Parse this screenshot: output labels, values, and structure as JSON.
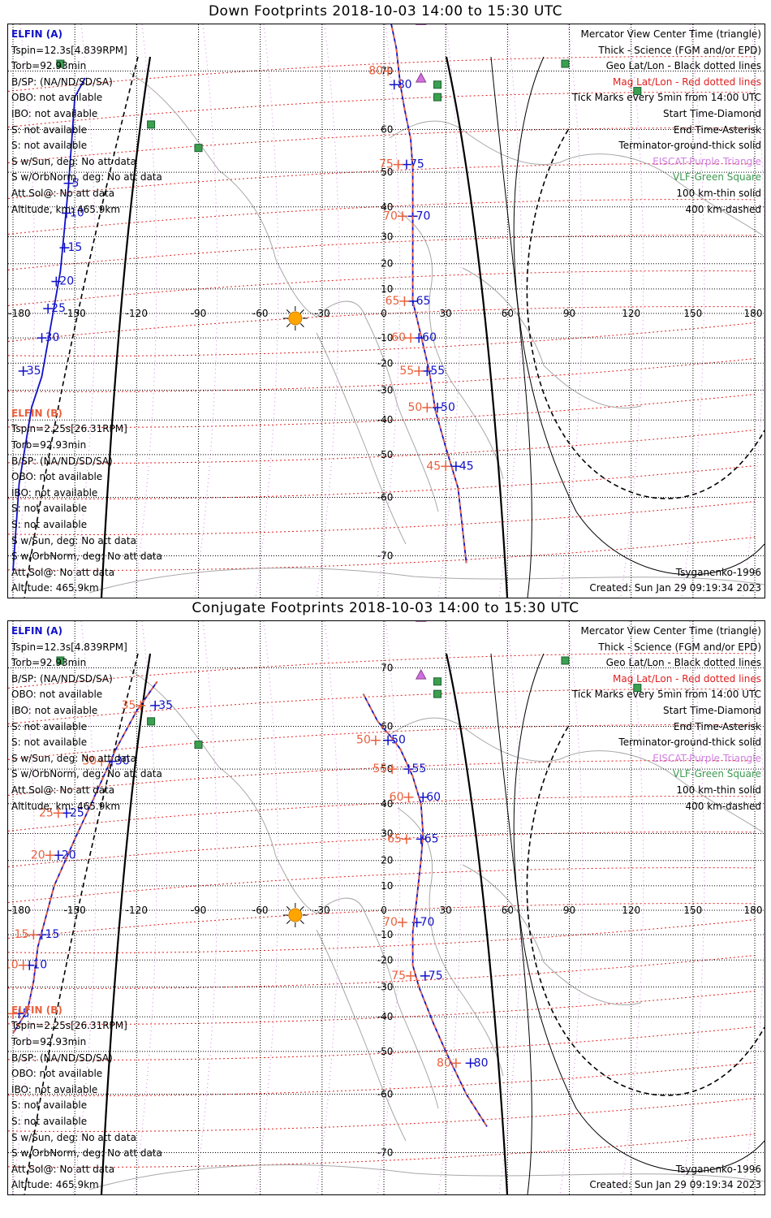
{
  "colors": {
    "elfin_a": "#1010c8",
    "elfin_b": "#e8603c",
    "mag_grid": "#e02020",
    "eiscat": "#d070e0",
    "vlf": "#3aa050",
    "coast": "#a8a8a8",
    "sun": "#ffa500"
  },
  "panels": [
    {
      "title": "Down Footprints 2018-10-03 14:00 to 15:30 UTC",
      "left_info": {
        "label": "ELFIN (A)",
        "lines": [
          "Tspin=12.3s[4.839RPM]",
          "Torb=92.93min",
          "B/SP: (NA/ND/SD/SA)",
          "OBO: not available",
          "IBO: not available",
          "S: not available",
          "S: not available",
          "S w/Sun, deg: No att data",
          "S w/OrbNorm, deg: No att data",
          "Att.Sol@: No att data",
          "Altitude, km: 465.9km"
        ]
      },
      "right_legend": [
        "Mercator View Center Time (triangle)",
        "Thick - Science (FGM and/or EPD)",
        "Geo Lat/Lon - Black dotted lines",
        "Mag Lat/Lon - Red dotted lines",
        "Tick Marks every 5min from 14:00 UTC",
        "Start Time-Diamond",
        "End Time-Asterisk",
        "Terminator-ground-thick solid",
        "EISCAT-Purple Triangle",
        "VLF-Green Square",
        "100 km-thin solid",
        "400 km-dashed"
      ],
      "bottom_info": {
        "label": "ELFIN (B)",
        "lines": [
          "Tspin=2.25s[26.31RPM]",
          "Torb=92.93min",
          "B/SP: (NA/ND/SD/SA)",
          "OBO: not available",
          "IBO: not available",
          "S: not available",
          "S: not available",
          "S w/Sun, deg: No att data",
          "S w/OrbNorm, deg: No att data",
          "Att.Sol@: No att data",
          "Altitude: 465.9km"
        ]
      },
      "footer_model": "Tsyganenko-1996",
      "footer_created": "Created: Sun Jan 29 09:19:34 2023",
      "lon_labels": [
        "-180",
        "-150",
        "-120",
        "-90",
        "-60",
        "-30",
        "0",
        "30",
        "60",
        "90",
        "120",
        "150",
        "180"
      ],
      "lat_labels": [
        "70",
        "60",
        "50",
        "40",
        "30",
        "20",
        "10",
        "-10",
        "-20",
        "-30",
        "-40",
        "-50",
        "-60",
        "-70"
      ],
      "tracks": [
        {
          "name": "ELFIN (A)",
          "color": "#1010c8",
          "points": [
            [
              -145,
              69
            ],
            [
              -150,
              66
            ],
            [
              -153,
              47
            ],
            [
              -155,
              33
            ],
            [
              -157,
              17
            ],
            [
              -161,
              -2
            ],
            [
              -166,
              -25
            ],
            [
              -171,
              -36
            ],
            [
              -177,
              -57
            ],
            [
              -180,
              -72
            ]
          ],
          "ticks": [
            [
              "5",
              -153,
              47
            ],
            [
              "10",
              -154,
              38
            ],
            [
              "15",
              -155,
              26
            ],
            [
              "20",
              -159,
              13
            ],
            [
              "25",
              -163,
              2
            ],
            [
              "30",
              -166,
              -10
            ],
            [
              "35",
              -175,
              -23
            ]
          ]
        },
        {
          "name": "ELFIN (A) Europe",
          "color": "#1010c8",
          "points": [
            [
              1,
              78
            ],
            [
              6,
              73
            ],
            [
              8,
              68
            ],
            [
              10,
              64
            ],
            [
              13,
              58
            ],
            [
              14,
              51
            ],
            [
              14,
              41
            ],
            [
              14,
              23
            ],
            [
              14,
              5
            ],
            [
              18,
              -9
            ],
            [
              22,
              -23
            ],
            [
              25,
              -37
            ],
            [
              30,
              -48
            ],
            [
              36,
              -58
            ],
            [
              40,
              -71
            ]
          ],
          "ticks": [
            [
              "80",
              5,
              68
            ],
            [
              "75",
              11,
              52
            ],
            [
              "70",
              14,
              37
            ],
            [
              "65",
              14,
              5
            ],
            [
              "60",
              17,
              -10
            ],
            [
              "55",
              21,
              -23
            ],
            [
              "50",
              26,
              -36
            ],
            [
              "45",
              35,
              -53
            ]
          ]
        },
        {
          "name": "ELFIN (B) Europe",
          "color": "#e8603c",
          "points": [
            [
              1,
              78
            ],
            [
              6,
              73
            ],
            [
              8,
              68
            ],
            [
              10,
              64
            ],
            [
              13,
              58
            ],
            [
              14,
              51
            ],
            [
              14,
              41
            ],
            [
              14,
              23
            ],
            [
              14,
              5
            ],
            [
              18,
              -9
            ],
            [
              22,
              -23
            ],
            [
              25,
              -37
            ],
            [
              30,
              -48
            ],
            [
              36,
              -58
            ],
            [
              40,
              -71
            ]
          ],
          "ticks": [
            [
              "80",
              2,
              70
            ],
            [
              "75",
              7,
              52
            ],
            [
              "70",
              9,
              37
            ],
            [
              "65",
              10,
              5
            ],
            [
              "60",
              13,
              -10
            ],
            [
              "55",
              17,
              -23
            ],
            [
              "50",
              21,
              -36
            ],
            [
              "45",
              30,
              -53
            ]
          ]
        }
      ],
      "sun": [
        -43,
        -2
      ],
      "eiscat": [
        [
          18,
          76
        ],
        [
          18,
          69
        ]
      ],
      "vlf": [
        [
          -157,
          71
        ],
        [
          -113,
          61
        ],
        [
          -90,
          56
        ],
        [
          26,
          68
        ],
        [
          26,
          66
        ],
        [
          88,
          71
        ],
        [
          123,
          67
        ]
      ]
    },
    {
      "title": "Conjugate Footprints 2018-10-03 14:00 to 15:30 UTC",
      "left_info": {
        "label": "ELFIN (A)",
        "lines": [
          "Tspin=12.3s[4.839RPM]",
          "Torb=92.93min",
          "B/SP: (NA/ND/SD/SA)",
          "OBO: not available",
          "IBO: not available",
          "S: not available",
          "S: not available",
          "S w/Sun, deg: No att data",
          "S w/OrbNorm, deg: No att data",
          "Att.Sol@: No att data",
          "Altitude, km: 465.9km"
        ]
      },
      "right_legend": [
        "Mercator View Center Time (triangle)",
        "Thick - Science (FGM and/or EPD)",
        "Geo Lat/Lon - Black dotted lines",
        "Mag Lat/Lon - Red dotted lines",
        "Tick Marks every 5min from 14:00 UTC",
        "Start Time-Diamond",
        "End Time-Asterisk",
        "Terminator-ground-thick solid",
        "EISCAT-Purple Triangle",
        "VLF-Green Square",
        "100 km-thin solid",
        "400 km-dashed"
      ],
      "bottom_info": {
        "label": "ELFIN (B)",
        "lines": [
          "Tspin=2.25s[26.31RPM]",
          "Torb=92.93min",
          "B/SP: (NA/ND/SD/SA)",
          "OBO: not available",
          "IBO: not available",
          "S: not available",
          "S: not available",
          "S w/Sun, deg: No att data",
          "S w/OrbNorm, deg: No att data",
          "Att.Sol@: No att data",
          "Altitude: 465.9km"
        ]
      },
      "footer_model": "Tsyganenko-1996",
      "footer_created": "Created: Sun Jan 29 09:19:34 2023",
      "lon_labels": [
        "-180",
        "-150",
        "-120",
        "-90",
        "-60",
        "-30",
        "0",
        "30",
        "60",
        "90",
        "120",
        "150",
        "180"
      ],
      "lat_labels": [
        "70",
        "60",
        "50",
        "40",
        "30",
        "20",
        "10",
        "-10",
        "-20",
        "-30",
        "-40",
        "-50",
        "-60",
        "-70"
      ],
      "tracks": [
        {
          "name": "ELFIN (A)",
          "color": "#1010c8",
          "points": [
            [
              -180,
              -45
            ],
            [
              -173,
              -38
            ],
            [
              -170,
              -28
            ],
            [
              -168,
              -15
            ],
            [
              -160,
              10
            ],
            [
              -150,
              28
            ],
            [
              -142,
              40
            ],
            [
              -130,
              55
            ],
            [
              -120,
              63
            ],
            [
              -110,
              68
            ]
          ],
          "ticks": [
            [
              "35",
              -111,
              64
            ],
            [
              "30",
              -132,
              52
            ],
            [
              "25",
              -154,
              37
            ],
            [
              "20",
              -158,
              22
            ],
            [
              "15",
              -166,
              -10
            ],
            [
              "10",
              -172,
              -22
            ],
            [
              "5",
              -177,
              -39
            ]
          ]
        },
        {
          "name": "ELFIN (B)",
          "color": "#e8603c",
          "points": [
            [
              -180,
              -45
            ],
            [
              -173,
              -38
            ],
            [
              -170,
              -28
            ],
            [
              -168,
              -15
            ],
            [
              -160,
              10
            ],
            [
              -150,
              28
            ],
            [
              -142,
              40
            ],
            [
              -130,
              55
            ],
            [
              -120,
              63
            ],
            [
              -110,
              68
            ]
          ],
          "ticks": [
            [
              "35",
              -118,
              64
            ],
            [
              "30",
              -137,
              52
            ],
            [
              "25",
              -158,
              37
            ],
            [
              "20",
              -162,
              22
            ],
            [
              "15",
              -170,
              -10
            ],
            [
              "10",
              -175,
              -22
            ],
            [
              "5",
              -180,
              -39
            ]
          ]
        },
        {
          "name": "ELFIN (A) Europe",
          "color": "#1010c8",
          "points": [
            [
              -10,
              66
            ],
            [
              -3,
              61
            ],
            [
              3,
              58
            ],
            [
              8,
              55
            ],
            [
              14,
              48
            ],
            [
              18,
              40
            ],
            [
              19,
              30
            ],
            [
              18,
              20
            ],
            [
              16,
              5
            ],
            [
              14,
              -9
            ],
            [
              14,
              -22
            ],
            [
              17,
              -30
            ],
            [
              24,
              -42
            ],
            [
              30,
              -50
            ],
            [
              40,
              -60
            ],
            [
              50,
              -66
            ]
          ],
          "ticks": [
            [
              "50",
              2,
              57
            ],
            [
              "55",
              12,
              50
            ],
            [
              "60",
              19,
              42
            ],
            [
              "65",
              18,
              28
            ],
            [
              "70",
              16,
              -5
            ],
            [
              "75",
              20,
              -26
            ],
            [
              "80",
              42,
              -53
            ]
          ]
        },
        {
          "name": "ELFIN (B) Europe",
          "color": "#e8603c",
          "points": [
            [
              -10,
              66
            ],
            [
              -3,
              61
            ],
            [
              3,
              58
            ],
            [
              8,
              55
            ],
            [
              14,
              48
            ],
            [
              18,
              40
            ],
            [
              19,
              30
            ],
            [
              18,
              20
            ],
            [
              16,
              5
            ],
            [
              14,
              -9
            ],
            [
              14,
              -22
            ],
            [
              17,
              -30
            ],
            [
              24,
              -42
            ],
            [
              30,
              -50
            ],
            [
              40,
              -60
            ],
            [
              50,
              -66
            ]
          ],
          "ticks": [
            [
              "50",
              -4,
              57
            ],
            [
              "55",
              4,
              50
            ],
            [
              "60",
              12,
              42
            ],
            [
              "65",
              11,
              28
            ],
            [
              "70",
              9,
              -5
            ],
            [
              "75",
              13,
              -26
            ],
            [
              "80",
              35,
              -53
            ]
          ]
        }
      ],
      "sun": [
        -43,
        -2
      ],
      "eiscat": [
        [
          18,
          76
        ],
        [
          18,
          69
        ]
      ],
      "vlf": [
        [
          -157,
          71
        ],
        [
          -113,
          61
        ],
        [
          -90,
          56
        ],
        [
          26,
          68
        ],
        [
          26,
          66
        ],
        [
          88,
          71
        ],
        [
          123,
          67
        ]
      ]
    }
  ]
}
